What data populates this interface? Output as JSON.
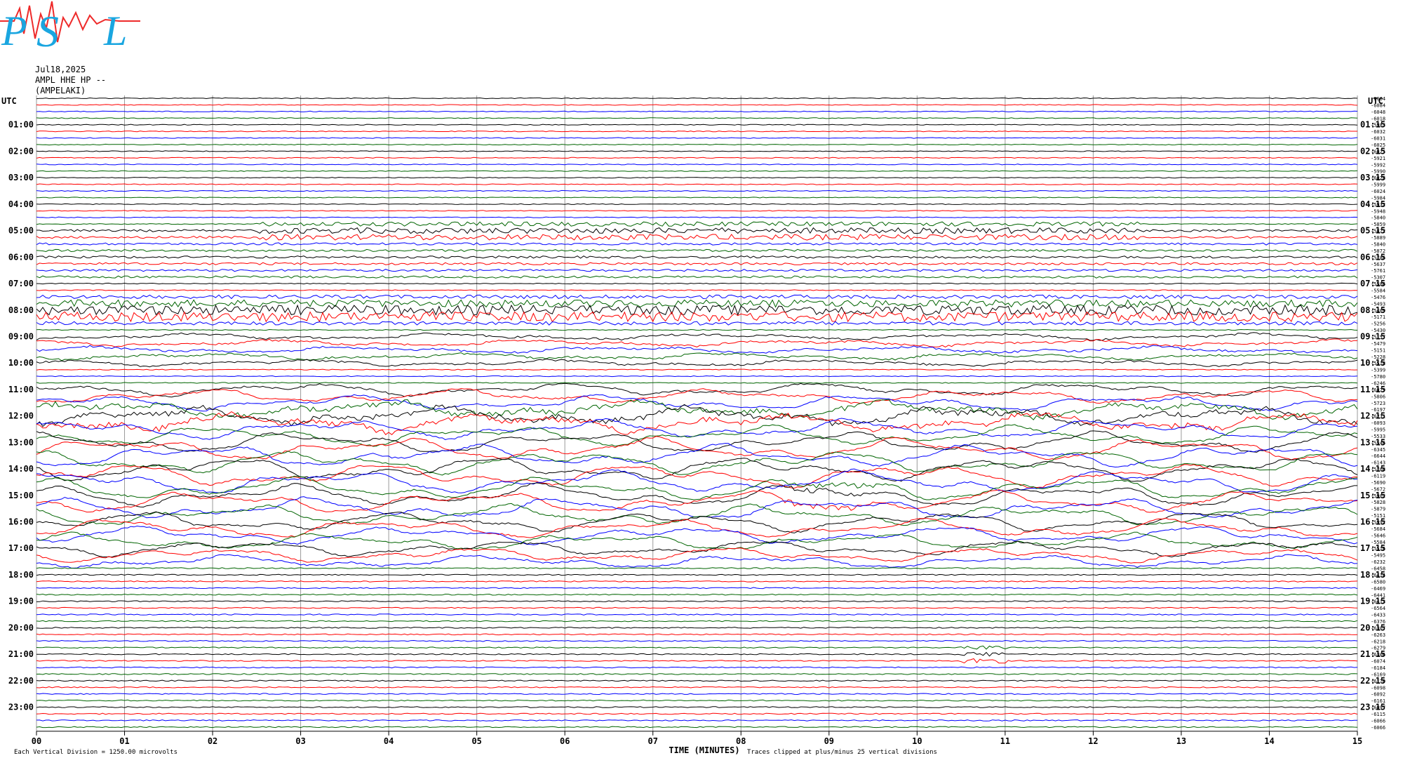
{
  "header": {
    "date": "Jul18,2025",
    "station_line": "AMPL HHE HP --",
    "station_name": "(AMPELAKI)"
  },
  "footer": {
    "xlabel": "TIME (MINUTES)",
    "scale_note": "Each Vertical Division = 1250.00 microvolts",
    "clip_note": "Traces clipped at plus/minus 25 vertical divisions"
  },
  "chart_data": {
    "type": "line",
    "title": "AMPL HHE HP --",
    "xlabel": "TIME (MINUTES)",
    "ylabel": "UTC",
    "xlim": [
      0,
      15
    ],
    "x_ticks": [
      "00",
      "01",
      "02",
      "03",
      "04",
      "05",
      "06",
      "07",
      "08",
      "09",
      "10",
      "11",
      "12",
      "13",
      "14",
      "15"
    ],
    "left_axis_label": "UTC",
    "right_axis_label": "UTC",
    "left_hour_labels": [
      "01:00",
      "02:00",
      "03:00",
      "04:00",
      "05:00",
      "06:00",
      "07:00",
      "08:00",
      "09:00",
      "10:00",
      "11:00",
      "12:00",
      "13:00",
      "14:00",
      "15:00",
      "16:00",
      "17:00",
      "18:00",
      "19:00",
      "20:00",
      "21:00",
      "22:00",
      "23:00"
    ],
    "right_hour_labels": [
      "01:15",
      "02:15",
      "03:15",
      "04:15",
      "05:15",
      "06:15",
      "07:15",
      "08:15",
      "09:15",
      "10:15",
      "11:15",
      "12:15",
      "13:15",
      "14:15",
      "15:15",
      "16:15",
      "17:15",
      "18:15",
      "19:15",
      "20:15",
      "21:15",
      "22:15",
      "23:15"
    ],
    "trace_count": 96,
    "trace_color_cycle": [
      "#000000",
      "#ff0000",
      "#0000ff",
      "#006400"
    ],
    "trace_offsets": [
      "-6064",
      "-6084",
      "-6048",
      "-6018",
      "-5983",
      "-6032",
      "-6031",
      "-6025",
      "-6025",
      "-5921",
      "-5992",
      "-5990",
      "-6028",
      "-5999",
      "-6024",
      "-5984",
      "-5932",
      "-5948",
      "-5840",
      "-5859",
      "-5872",
      "-5889",
      "-5840",
      "-5872",
      "-5786",
      "-5637",
      "-5761",
      "-5307",
      "-5586",
      "-5584",
      "-5476",
      "-5493",
      "-5409",
      "-5171",
      "-5256",
      "-5430",
      "-5157",
      "-5479",
      "-5151",
      "-5228",
      "-5518",
      "-5399",
      "-5780",
      "-6246",
      "-6079",
      "-5806",
      "-5723",
      "-6197",
      "-6231",
      "-6093",
      "-5995",
      "-5533",
      "-5546",
      "-6345",
      "-6644",
      "-6143",
      "-5768",
      "-6119",
      "-5690",
      "-5672",
      "-5902",
      "-5828",
      "-5879",
      "-5151",
      "-5992",
      "-5684",
      "-5646",
      "-5584",
      "-5516",
      "-5495",
      "-6232",
      "-6458",
      "-6414",
      "-6580",
      "-6469",
      "-6441",
      "-6413",
      "-6564",
      "-6433",
      "-6376",
      "-6307",
      "-6263",
      "-6218",
      "-6279",
      "-6306",
      "-6074",
      "-6184",
      "-6169",
      "-6170",
      "-6098",
      "-6092",
      "-6161",
      "-6097",
      "-6115",
      "-6066",
      "-6066"
    ],
    "event_windows": [
      {
        "utc": "08:00",
        "from_min": 0.1,
        "to_min": 15,
        "level": "high"
      },
      {
        "utc": "05:00",
        "from_min": 2.5,
        "to_min": 12.5,
        "level": "moderate"
      },
      {
        "utc": "12:00",
        "from_min": 0,
        "to_min": 15,
        "level": "low-frequency swell"
      },
      {
        "utc": "15:00",
        "from_min": 8.5,
        "to_min": 9.5,
        "level": "moderate"
      },
      {
        "utc": "21:00",
        "from_min": 10.5,
        "to_min": 11.0,
        "level": "moderate"
      }
    ],
    "grid": "vertical lines at each minute"
  }
}
